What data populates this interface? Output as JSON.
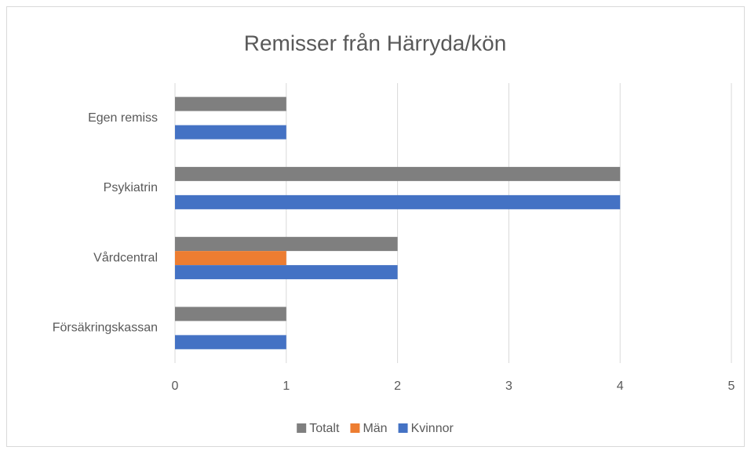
{
  "chart_data": {
    "type": "bar",
    "orientation": "horizontal",
    "title": "Remisser från Härryda/kön",
    "categories": [
      "Egen remiss",
      "Psykiatrin",
      "Vårdcentral",
      "Försäkringskassan"
    ],
    "series": [
      {
        "name": "Totalt",
        "color": "#7f7f7f",
        "values": [
          1,
          4,
          2,
          1
        ]
      },
      {
        "name": "Män",
        "color": "#ed7d31",
        "values": [
          0,
          0,
          1,
          0
        ]
      },
      {
        "name": "Kvinnor",
        "color": "#4472c4",
        "values": [
          1,
          4,
          2,
          1
        ]
      }
    ],
    "xlim": [
      0,
      5
    ],
    "xticks": [
      0,
      1,
      2,
      3,
      4,
      5
    ],
    "grid": true,
    "legend": "bottom"
  }
}
